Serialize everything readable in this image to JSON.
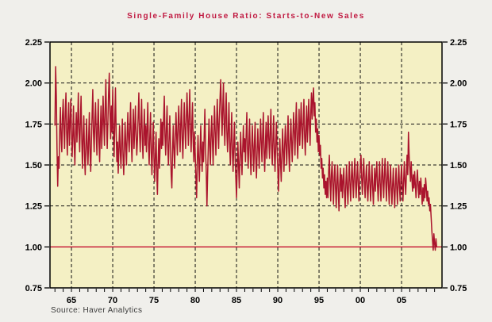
{
  "chart_data": {
    "type": "line",
    "title": "Single-Family House Ratio: Starts-to-New Sales",
    "source": "Source: Haver Analytics",
    "frequency": "monthly",
    "start_year": 1963,
    "points_per_year": 12,
    "x_domain": [
      1962.4,
      2009.9
    ],
    "ylim": [
      0.75,
      2.25
    ],
    "y_ticks": [
      {
        "value": 2.25,
        "label": "2.25"
      },
      {
        "value": 2.0,
        "label": "2.00"
      },
      {
        "value": 1.75,
        "label": "1.75"
      },
      {
        "value": 1.5,
        "label": "1.50"
      },
      {
        "value": 1.25,
        "label": "1.25"
      },
      {
        "value": 1.0,
        "label": "1.00"
      },
      {
        "value": 0.75,
        "label": "0.75"
      }
    ],
    "h_grid_values": [
      2.0,
      1.75,
      1.5,
      1.25
    ],
    "refline_value": 1.0,
    "x_ticks": [
      {
        "year": 1965,
        "label": "65"
      },
      {
        "year": 1970,
        "label": "70"
      },
      {
        "year": 1975,
        "label": "75"
      },
      {
        "year": 1980,
        "label": "80"
      },
      {
        "year": 1985,
        "label": "85"
      },
      {
        "year": 1990,
        "label": "90"
      },
      {
        "year": 1995,
        "label": "95"
      },
      {
        "year": 2000,
        "label": "00"
      },
      {
        "year": 2005,
        "label": "05"
      }
    ],
    "minor_tick_years": {
      "from": 1963,
      "to": 2009,
      "step": 1
    },
    "grid": "dashed",
    "legend": "none",
    "colors": {
      "figure_bg": "#f0efeb",
      "plot_bg": "#f4f0c4",
      "series": "#aa142d",
      "refline": "#c41030",
      "grid": "#111111",
      "border": "#000000",
      "title": "#c01840",
      "axis_text": "#000000",
      "source_text": "#3a3a3a"
    },
    "values": [
      1.74,
      2.1,
      1.92,
      1.6,
      1.37,
      1.55,
      1.48,
      1.72,
      1.85,
      1.66,
      1.58,
      1.8,
      1.9,
      1.72,
      1.6,
      1.82,
      1.94,
      1.7,
      1.56,
      1.75,
      1.88,
      1.62,
      1.74,
      1.9,
      1.72,
      1.55,
      1.68,
      1.86,
      1.62,
      1.5,
      1.7,
      1.82,
      1.64,
      1.76,
      1.94,
      1.7,
      1.58,
      1.78,
      1.92,
      1.66,
      1.48,
      1.68,
      1.8,
      1.56,
      1.44,
      1.62,
      1.78,
      1.6,
      1.5,
      1.66,
      1.82,
      1.58,
      1.46,
      1.64,
      1.8,
      1.96,
      1.7,
      1.58,
      1.76,
      1.88,
      1.7,
      1.56,
      1.74,
      1.9,
      1.64,
      1.52,
      1.72,
      1.86,
      1.6,
      1.74,
      1.92,
      1.76,
      1.62,
      1.84,
      2.02,
      1.78,
      1.6,
      1.76,
      1.94,
      2.06,
      1.82,
      1.66,
      1.86,
      1.7,
      1.96,
      1.72,
      1.55,
      1.76,
      1.97,
      1.7,
      1.52,
      1.64,
      1.45,
      1.6,
      1.74,
      1.58,
      1.48,
      1.64,
      1.78,
      1.56,
      1.44,
      1.6,
      1.76,
      1.62,
      1.5,
      1.68,
      1.82,
      1.66,
      1.58,
      1.74,
      1.88,
      1.64,
      1.52,
      1.7,
      1.84,
      1.6,
      1.72,
      1.86,
      1.68,
      1.56,
      1.66,
      1.8,
      1.94,
      1.7,
      1.58,
      1.74,
      1.9,
      1.66,
      1.54,
      1.7,
      1.84,
      1.62,
      1.74,
      1.58,
      1.72,
      1.88,
      1.62,
      1.5,
      1.68,
      1.82,
      1.58,
      1.44,
      1.62,
      1.76,
      1.54,
      1.4,
      1.56,
      1.7,
      1.46,
      1.32,
      1.52,
      1.66,
      1.48,
      1.62,
      1.78,
      1.6,
      1.76,
      1.62,
      1.78,
      1.92,
      1.68,
      1.56,
      1.72,
      1.86,
      1.62,
      1.5,
      1.66,
      1.8,
      1.62,
      1.44,
      1.36,
      1.58,
      1.74,
      1.6,
      1.48,
      1.66,
      1.82,
      1.68,
      1.56,
      1.74,
      1.86,
      1.7,
      1.58,
      1.76,
      1.9,
      1.66,
      1.54,
      1.72,
      1.88,
      1.72,
      1.6,
      1.78,
      1.94,
      1.78,
      1.62,
      1.8,
      1.96,
      1.72,
      1.58,
      1.74,
      1.88,
      1.64,
      1.52,
      1.7,
      1.56,
      1.42,
      1.3,
      1.52,
      1.68,
      1.54,
      1.4,
      1.58,
      1.74,
      1.58,
      1.46,
      1.64,
      1.52,
      1.68,
      1.84,
      1.6,
      1.46,
      1.25,
      1.44,
      1.62,
      1.78,
      1.62,
      1.5,
      1.68,
      1.8,
      1.64,
      1.5,
      1.7,
      1.86,
      1.7,
      1.56,
      1.74,
      1.9,
      1.74,
      1.6,
      1.78,
      1.9,
      2.02,
      1.84,
      1.68,
      1.84,
      2.0,
      1.76,
      1.62,
      1.8,
      1.94,
      1.7,
      1.58,
      1.72,
      1.88,
      1.64,
      1.5,
      1.66,
      1.82,
      1.58,
      1.46,
      1.62,
      1.76,
      1.54,
      1.42,
      1.3,
      1.48,
      1.64,
      1.5,
      1.36,
      1.54,
      1.7,
      1.56,
      1.44,
      1.6,
      1.74,
      1.58,
      1.66,
      1.52,
      1.68,
      1.82,
      1.6,
      1.48,
      1.64,
      1.78,
      1.56,
      1.44,
      1.6,
      1.74,
      1.6,
      1.46,
      1.62,
      1.76,
      1.54,
      1.42,
      1.58,
      1.72,
      1.6,
      1.48,
      1.64,
      1.78,
      1.64,
      1.52,
      1.68,
      1.82,
      1.58,
      1.46,
      1.62,
      1.76,
      1.54,
      1.66,
      1.8,
      1.66,
      1.54,
      1.7,
      1.84,
      1.62,
      1.5,
      1.66,
      1.8,
      1.58,
      1.46,
      1.62,
      1.76,
      1.6,
      1.48,
      1.34,
      1.5,
      1.66,
      1.52,
      1.4,
      1.56,
      1.72,
      1.58,
      1.46,
      1.62,
      1.74,
      1.62,
      1.5,
      1.66,
      1.8,
      1.58,
      1.46,
      1.64,
      1.78,
      1.64,
      1.52,
      1.68,
      1.82,
      1.7,
      1.56,
      1.74,
      1.88,
      1.66,
      1.54,
      1.7,
      1.84,
      1.62,
      1.74,
      1.88,
      1.72,
      1.6,
      1.76,
      1.9,
      1.68,
      1.56,
      1.72,
      1.86,
      1.64,
      1.76,
      1.9,
      1.74,
      1.62,
      1.82,
      1.94,
      1.78,
      1.9,
      1.97,
      1.8,
      1.88,
      1.7,
      1.78,
      1.64,
      1.72,
      1.58,
      1.68,
      1.56,
      1.62,
      1.48,
      1.54,
      1.42,
      1.48,
      1.36,
      1.44,
      1.32,
      1.4,
      1.3,
      1.42,
      1.3,
      1.46,
      1.56,
      1.4,
      1.28,
      1.44,
      1.52,
      1.38,
      1.26,
      1.42,
      1.5,
      1.36,
      1.24,
      1.4,
      1.5,
      1.34,
      1.22,
      1.38,
      1.48,
      1.34,
      1.44,
      1.3,
      1.4,
      1.48,
      1.34,
      1.24,
      1.38,
      1.5,
      1.36,
      1.26,
      1.4,
      1.52,
      1.38,
      1.28,
      1.42,
      1.52,
      1.4,
      1.3,
      1.44,
      1.54,
      1.4,
      1.3,
      1.42,
      1.52,
      1.38,
      1.28,
      1.4,
      1.5,
      1.56,
      1.42,
      1.32,
      1.44,
      1.54,
      1.4,
      1.3,
      1.42,
      1.5,
      1.36,
      1.28,
      1.4,
      1.52,
      1.38,
      1.28,
      1.4,
      1.5,
      1.36,
      1.26,
      1.38,
      1.48,
      1.34,
      1.44,
      1.52,
      1.38,
      1.28,
      1.4,
      1.52,
      1.38,
      1.28,
      1.42,
      1.54,
      1.4,
      1.3,
      1.44,
      1.54,
      1.4,
      1.28,
      1.42,
      1.52,
      1.38,
      1.26,
      1.4,
      1.5,
      1.36,
      1.26,
      1.38,
      1.48,
      1.34,
      1.24,
      1.38,
      1.48,
      1.36,
      1.26,
      1.4,
      1.5,
      1.36,
      1.28,
      1.42,
      1.5,
      1.38,
      1.28,
      1.4,
      1.52,
      1.4,
      1.32,
      1.44,
      1.56,
      1.44,
      1.7,
      1.56,
      1.48,
      1.4,
      1.52,
      1.42,
      1.34,
      1.44,
      1.36,
      1.46,
      1.38,
      1.3,
      1.4,
      1.47,
      1.38,
      1.3,
      1.4,
      1.32,
      1.42,
      1.34,
      1.26,
      1.36,
      1.28,
      1.38,
      1.3,
      1.42,
      1.36,
      1.28,
      1.34,
      1.26,
      1.3,
      1.22,
      1.26,
      1.18,
      1.1,
      1.04,
      0.98,
      1.08,
      1.02,
      0.98,
      1.05,
      1.0
    ]
  }
}
